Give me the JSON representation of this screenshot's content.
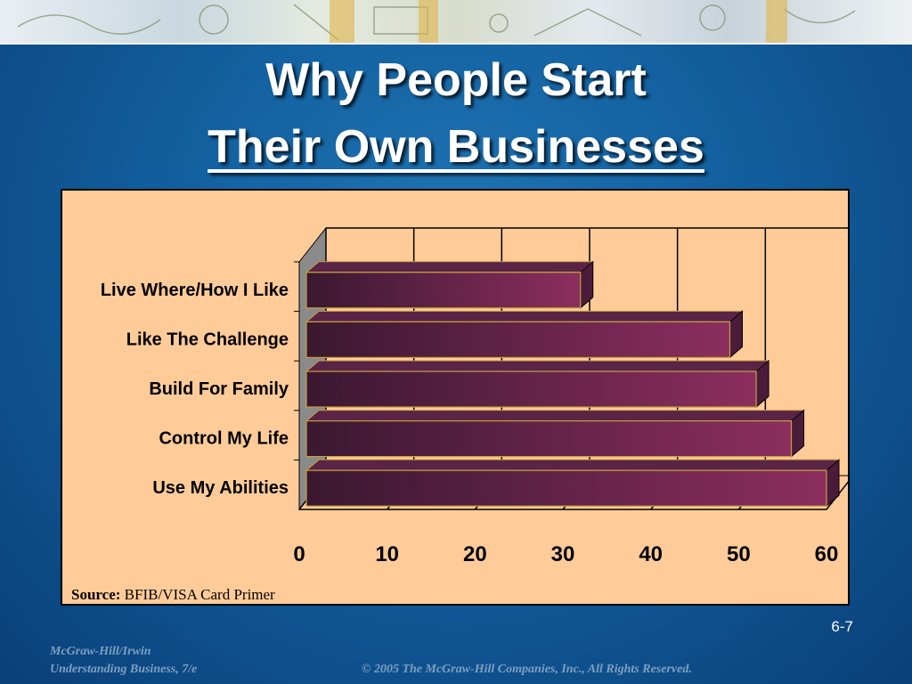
{
  "slide": {
    "title_line1": "Why People Start",
    "title_line2": "Their Own Businesses",
    "source_label": "Source:",
    "source_text": "BFIB/VISA Card Primer",
    "page_number": "6-7",
    "publisher": "McGraw-Hill/Irwin",
    "book": "Understanding Business, 7/e",
    "copyright": "© 2005 The McGraw-Hill Companies, Inc., All Rights Reserved."
  },
  "colors": {
    "background": "#125f9e",
    "chart_bg": "#ffcc99",
    "bar_dark": "#3a1830",
    "bar_light": "#8c2e5e",
    "bar_edge": "#c8a040"
  },
  "chart_data": {
    "type": "bar",
    "orientation": "horizontal",
    "style": "3d",
    "categories": [
      "Live Where/How I Like",
      "Like The Challenge",
      "Build For Family",
      "Control My Life",
      "Use My Abilities"
    ],
    "values": [
      32,
      49,
      52,
      56,
      60
    ],
    "xlim": [
      0,
      60
    ],
    "xticks": [
      0,
      10,
      20,
      30,
      40,
      50,
      60
    ],
    "grid": true,
    "title": "",
    "xlabel": "",
    "ylabel": ""
  }
}
